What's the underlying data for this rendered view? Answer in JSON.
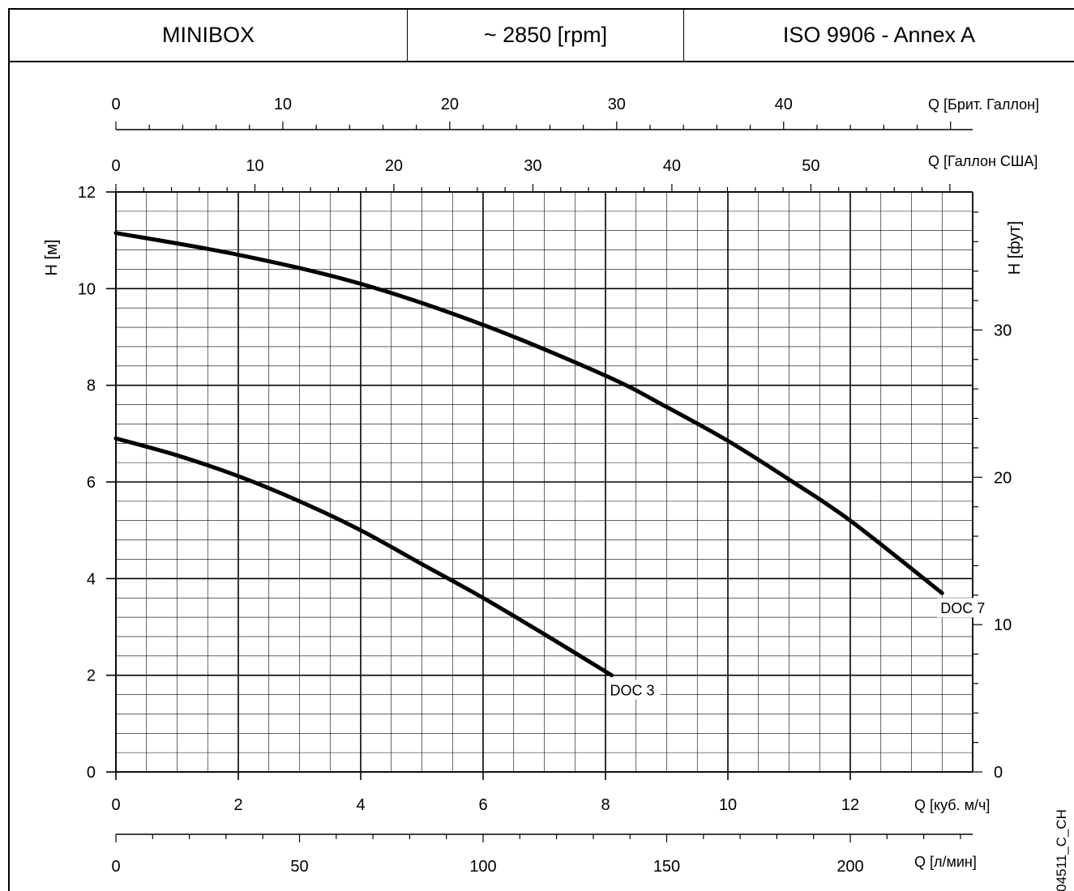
{
  "header": {
    "model": "MINIBOX",
    "speed": "~ 2850 [rpm]",
    "standard": "ISO 9906 - Annex A"
  },
  "figure_code": "04511_C_CH",
  "chart_data": {
    "type": "line",
    "xlabel": "Q [куб. м/ч]",
    "ylabel": "H [м]",
    "xlim": [
      0,
      14
    ],
    "ylim": [
      0,
      12
    ],
    "x_ticks": [
      "0",
      "2",
      "4",
      "6",
      "8",
      "10",
      "12"
    ],
    "y_ticks": [
      "0",
      "2",
      "4",
      "6",
      "8",
      "10",
      "12"
    ],
    "grid": true,
    "secondary_axes": {
      "right_label": "H [фут]",
      "right_ticks": [
        "0",
        "10",
        "20",
        "30"
      ],
      "bottom2_label": "Q [л/мин]",
      "bottom2_ticks": [
        "0",
        "50",
        "100",
        "150",
        "200"
      ],
      "top1_label": "Q [Брит. Галлон]",
      "top1_ticks": [
        "0",
        "10",
        "20",
        "30",
        "40"
      ],
      "top2_label": "Q [Галлон США]",
      "top2_ticks": [
        "0",
        "10",
        "20",
        "30",
        "40",
        "50"
      ]
    },
    "series": [
      {
        "name": "DOC 3",
        "x": [
          0,
          1,
          2,
          3,
          4,
          5,
          6,
          7,
          8.1
        ],
        "y": [
          6.9,
          6.55,
          6.12,
          5.6,
          5.0,
          4.3,
          3.6,
          2.85,
          2.0
        ]
      },
      {
        "name": "DOC 7",
        "x": [
          0,
          2,
          4,
          6,
          8,
          9,
          10,
          11,
          12,
          13.5
        ],
        "y": [
          11.15,
          10.7,
          10.1,
          9.25,
          8.2,
          7.55,
          6.85,
          6.05,
          5.2,
          3.7
        ]
      }
    ]
  }
}
